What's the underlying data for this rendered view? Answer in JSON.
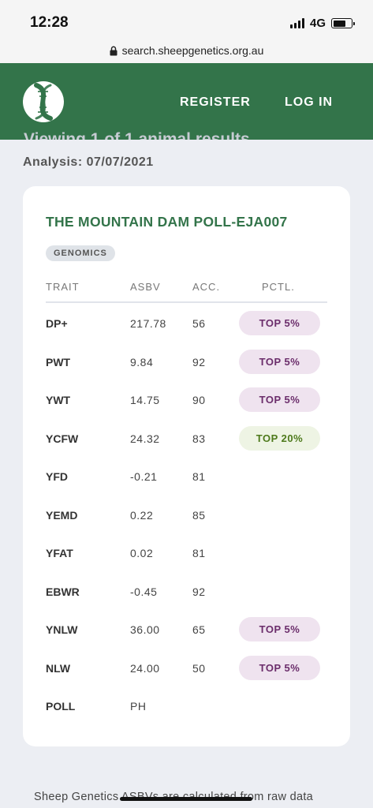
{
  "status_bar": {
    "time": "12:28",
    "network": "4G"
  },
  "browser": {
    "url": "search.sheepgenetics.org.au"
  },
  "header": {
    "register_label": "REGISTER",
    "login_label": "LOG IN"
  },
  "page": {
    "faded_heading": "Viewing 1 of 1 animal results",
    "analysis_date": "Analysis: 07/07/2021"
  },
  "card": {
    "animal_name": "THE MOUNTAIN DAM POLL-EJA007",
    "badge": "GENOMICS",
    "columns": [
      "TRAIT",
      "ASBV",
      "ACC.",
      "PCTL."
    ],
    "rows": [
      {
        "trait": "DP+",
        "asbv": "217.78",
        "acc": "56",
        "pctl": "TOP 5%",
        "pctl_style": "purple"
      },
      {
        "trait": "PWT",
        "asbv": "9.84",
        "acc": "92",
        "pctl": "TOP 5%",
        "pctl_style": "purple"
      },
      {
        "trait": "YWT",
        "asbv": "14.75",
        "acc": "90",
        "pctl": "TOP 5%",
        "pctl_style": "purple"
      },
      {
        "trait": "YCFW",
        "asbv": "24.32",
        "acc": "83",
        "pctl": "TOP 20%",
        "pctl_style": "green"
      },
      {
        "trait": "YFD",
        "asbv": "-0.21",
        "acc": "81",
        "pctl": "",
        "pctl_style": ""
      },
      {
        "trait": "YEMD",
        "asbv": "0.22",
        "acc": "85",
        "pctl": "",
        "pctl_style": ""
      },
      {
        "trait": "YFAT",
        "asbv": "0.02",
        "acc": "81",
        "pctl": "",
        "pctl_style": ""
      },
      {
        "trait": "EBWR",
        "asbv": "-0.45",
        "acc": "92",
        "pctl": "",
        "pctl_style": ""
      },
      {
        "trait": "YNLW",
        "asbv": "36.00",
        "acc": "65",
        "pctl": "TOP 5%",
        "pctl_style": "purple"
      },
      {
        "trait": "NLW",
        "asbv": "24.00",
        "acc": "50",
        "pctl": "TOP 5%",
        "pctl_style": "purple"
      },
      {
        "trait": "POLL",
        "asbv": "PH",
        "acc": "",
        "pctl": "",
        "pctl_style": ""
      }
    ]
  },
  "footer": {
    "note": "Sheep Genetics ASBVs are calculated from raw data"
  },
  "icons": {
    "logo": "sheep-genetics-dna-logo-icon",
    "lock": "lock-icon",
    "signal": "cellular-signal-icon",
    "battery": "battery-icon"
  },
  "colors": {
    "brand_green": "#33744a",
    "pctl_purple_bg": "#efe3ef",
    "pctl_purple_text": "#6b2d6b",
    "pctl_green_bg": "#eef4e4",
    "pctl_green_text": "#4e7a1c"
  }
}
